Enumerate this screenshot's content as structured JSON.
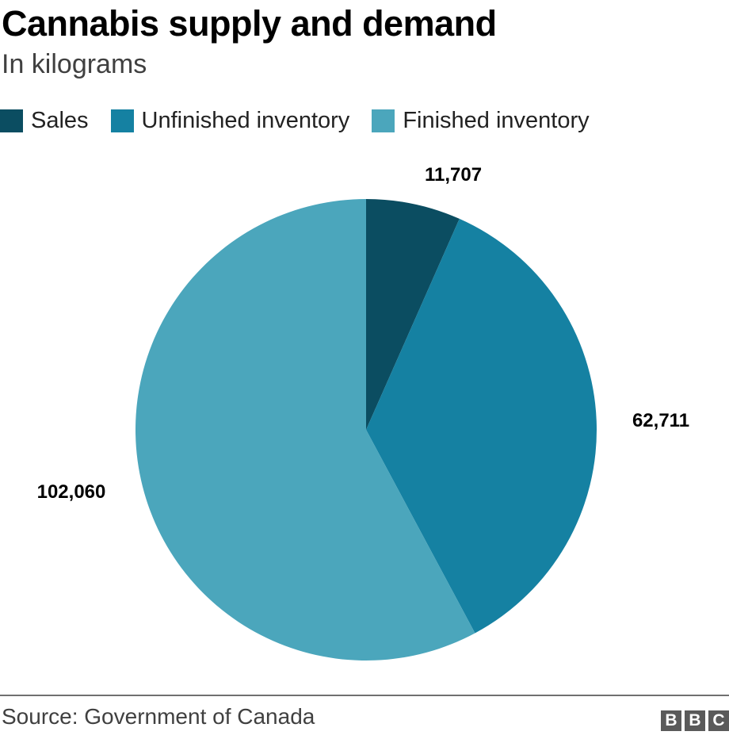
{
  "header": {
    "title": "Cannabis supply and demand",
    "subtitle": "In kilograms"
  },
  "footer": {
    "source": "Source: Government of Canada",
    "logo_letters": [
      "B",
      "B",
      "C"
    ]
  },
  "chart_data": {
    "type": "pie",
    "title": "Cannabis supply and demand",
    "subtitle": "In kilograms",
    "legend_position": "top-left",
    "start_angle": "12 o'clock, clockwise",
    "slices": [
      {
        "name": "Sales",
        "value": 11707,
        "label": "11,707",
        "color": "#0b4d61"
      },
      {
        "name": "Unfinished inventory",
        "value": 62711,
        "label": "62,711",
        "color": "#1581a2"
      },
      {
        "name": "Finished inventory",
        "value": 102060,
        "label": "102,060",
        "color": "#4ba6bc"
      }
    ]
  }
}
